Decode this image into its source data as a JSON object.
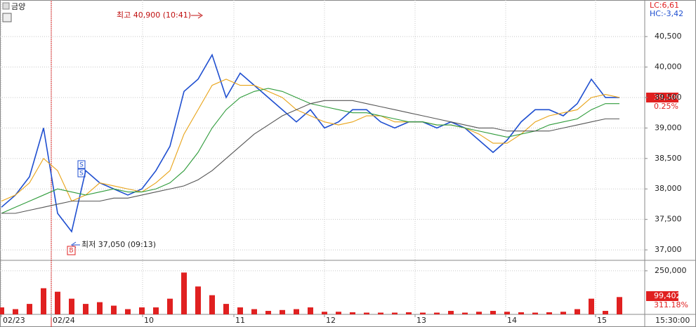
{
  "chart_data": [
    {
      "type": "line",
      "title": "금양",
      "x": [
        0,
        1,
        2,
        3,
        4,
        5,
        6,
        7,
        8,
        9,
        10,
        11,
        12,
        13,
        14,
        15,
        16,
        17,
        18,
        19,
        20,
        21,
        22,
        23,
        24,
        25,
        26,
        27,
        28,
        29,
        30,
        31,
        32,
        33,
        34,
        35,
        36,
        37,
        38,
        39,
        40,
        41,
        42,
        43,
        44
      ],
      "xlim": [
        -0.1,
        45.8
      ],
      "xticks": [
        {
          "value": 0,
          "label": "02/23"
        },
        {
          "value": 3.55,
          "label": "02/24"
        },
        {
          "value": 10.05,
          "label": "10"
        },
        {
          "value": 16.55,
          "label": "11"
        },
        {
          "value": 23,
          "label": "12"
        },
        {
          "value": 29.45,
          "label": "13"
        },
        {
          "value": 35.9,
          "label": "14"
        },
        {
          "value": 42.3,
          "label": "15"
        }
      ],
      "ylim": [
        36840,
        41100
      ],
      "yticks": [
        {
          "value": 37000,
          "label": "37,000"
        },
        {
          "value": 37500,
          "label": "37,500"
        },
        {
          "value": 38000,
          "label": "38,000"
        },
        {
          "value": 38500,
          "label": "38,500"
        },
        {
          "value": 39000,
          "label": "39,000"
        },
        {
          "value": 39500,
          "label": "39,500"
        },
        {
          "value": 40000,
          "label": "40,000"
        },
        {
          "value": 40500,
          "label": "40,500"
        }
      ],
      "grid": true,
      "series": [
        {
          "name": "price",
          "color": "#1f4fd0",
          "values": [
            37700,
            37900,
            38200,
            39000,
            37600,
            37300,
            38300,
            38100,
            38000,
            37900,
            38000,
            38300,
            38700,
            39600,
            39800,
            40200,
            39500,
            39900,
            39700,
            39500,
            39300,
            39100,
            39300,
            39000,
            39100,
            39300,
            39300,
            39100,
            39000,
            39100,
            39100,
            39000,
            39100,
            39000,
            38800,
            38600,
            38800,
            39100,
            39300,
            39300,
            39200,
            39400,
            39800,
            39500,
            39500
          ]
        },
        {
          "name": "ma-short",
          "color": "#e8a317",
          "values": [
            37800,
            37900,
            38100,
            38500,
            38300,
            37800,
            37900,
            38100,
            38050,
            38000,
            37950,
            38100,
            38300,
            38900,
            39300,
            39700,
            39800,
            39700,
            39700,
            39600,
            39500,
            39300,
            39200,
            39100,
            39050,
            39100,
            39200,
            39200,
            39100,
            39100,
            39100,
            39050,
            39050,
            39000,
            38900,
            38750,
            38750,
            38900,
            39100,
            39200,
            39250,
            39300,
            39500,
            39550,
            39500
          ]
        },
        {
          "name": "ma-mid",
          "color": "#2e9b3a",
          "values": [
            37600,
            37700,
            37800,
            37900,
            38000,
            37950,
            37900,
            37950,
            38000,
            37950,
            37950,
            38000,
            38100,
            38300,
            38600,
            39000,
            39300,
            39500,
            39600,
            39650,
            39600,
            39500,
            39400,
            39350,
            39300,
            39250,
            39250,
            39200,
            39150,
            39100,
            39100,
            39050,
            39050,
            39000,
            38950,
            38900,
            38850,
            38900,
            38950,
            39050,
            39100,
            39150,
            39300,
            39400,
            39400
          ]
        },
        {
          "name": "ma-long",
          "color": "#555555",
          "values": [
            37600,
            37600,
            37650,
            37700,
            37750,
            37800,
            37800,
            37800,
            37850,
            37850,
            37900,
            37950,
            38000,
            38050,
            38150,
            38300,
            38500,
            38700,
            38900,
            39050,
            39200,
            39300,
            39400,
            39450,
            39450,
            39450,
            39400,
            39350,
            39300,
            39250,
            39200,
            39150,
            39100,
            39050,
            39000,
            39000,
            38950,
            38950,
            38950,
            38950,
            39000,
            39050,
            39100,
            39150,
            39150
          ]
        }
      ],
      "annotations": {
        "high": "최고 40,900 (10:41)",
        "low": "최저 37,050 (09:13)",
        "lc": "LC:6,61",
        "hc": "HC:-3,42",
        "last": "39,500",
        "change": "0.25%",
        "sell": "S",
        "buy": "B"
      }
    },
    {
      "type": "bar",
      "x": [
        0,
        1,
        2,
        3,
        4,
        5,
        6,
        7,
        8,
        9,
        10,
        11,
        12,
        13,
        14,
        15,
        16,
        17,
        18,
        19,
        20,
        21,
        22,
        23,
        24,
        25,
        26,
        27,
        28,
        29,
        30,
        31,
        32,
        33,
        34,
        35,
        36,
        37,
        38,
        39,
        40,
        41,
        42,
        43,
        44
      ],
      "xlim": [
        -0.1,
        45.8
      ],
      "ylim": [
        0,
        306000
      ],
      "yticks": [
        {
          "value": 250000,
          "label": "250,000"
        }
      ],
      "color": "#e02020",
      "values": [
        40000,
        30000,
        60000,
        150000,
        130000,
        90000,
        60000,
        70000,
        50000,
        30000,
        40000,
        40000,
        90000,
        240000,
        160000,
        110000,
        60000,
        40000,
        30000,
        20000,
        25000,
        30000,
        40000,
        15000,
        15000,
        12000,
        10000,
        10000,
        10000,
        12000,
        10000,
        10000,
        20000,
        10000,
        15000,
        20000,
        15000,
        12000,
        10000,
        12000,
        15000,
        30000,
        90000,
        20000,
        99402
      ],
      "annotations": {
        "last": "99,402",
        "ratio": "311.18%",
        "time": "15:30:00"
      }
    }
  ]
}
